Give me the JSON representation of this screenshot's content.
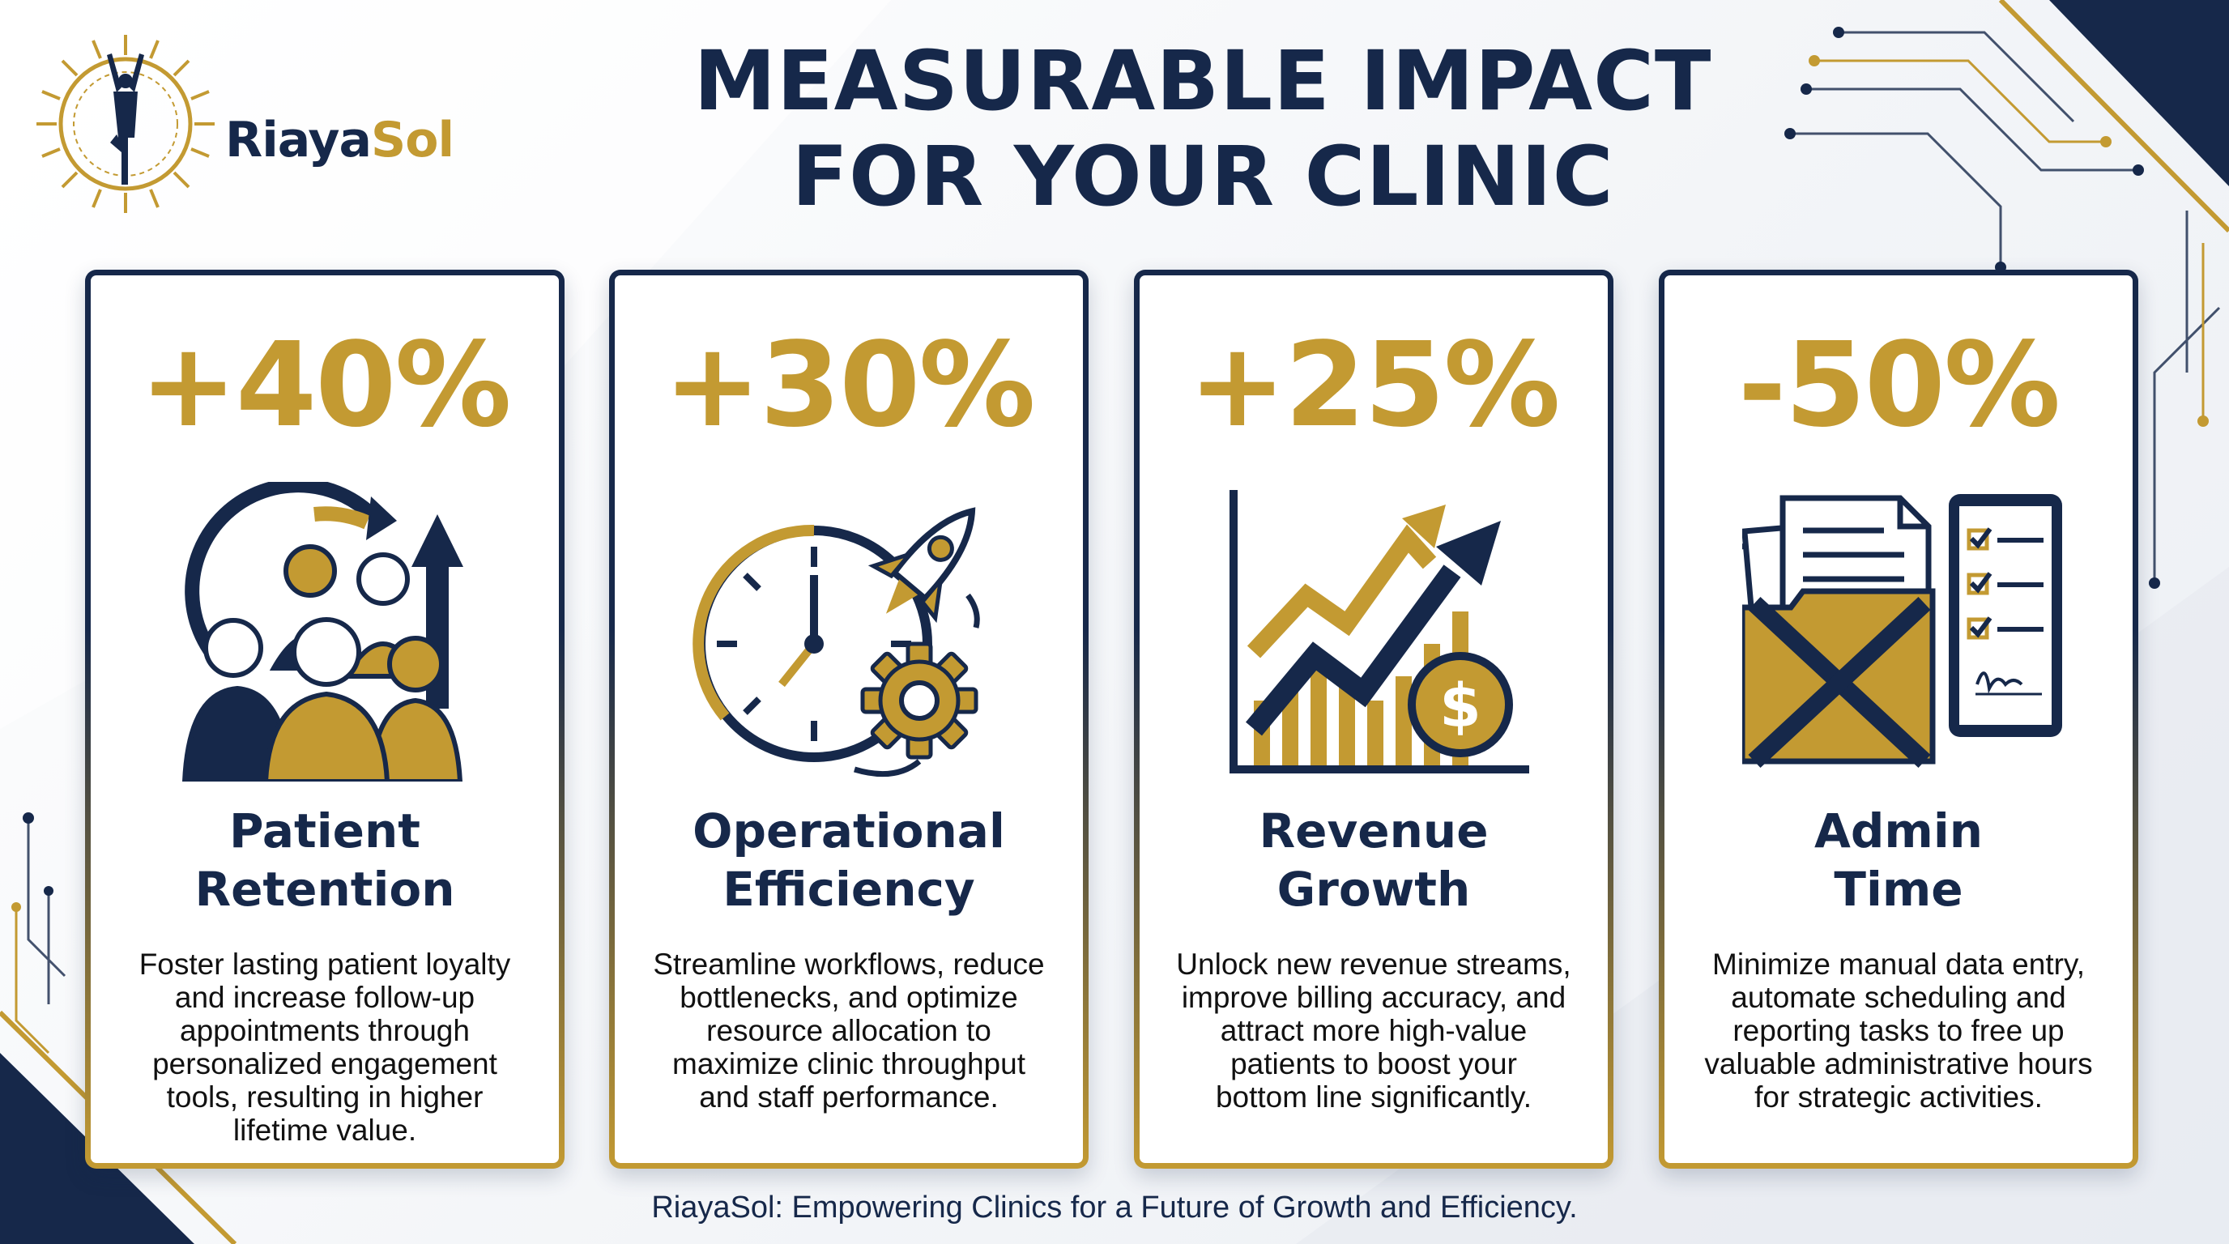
{
  "brand": {
    "name_part1": "Riaya",
    "name_part2": "Sol"
  },
  "title": {
    "line1": "MEASURABLE IMPACT",
    "line2": "FOR YOUR CLINIC"
  },
  "colors": {
    "navy": "#16284a",
    "gold": "#c39a32"
  },
  "cards": [
    {
      "stat": "+40%",
      "icon": "patient-group-retention-icon",
      "title_line1": "Patient",
      "title_line2": "Retention",
      "desc_lines": [
        "Foster lasting patient loyalty",
        "and increase follow-up",
        "appointments through",
        "personalized engagement",
        "tools, resulting in higher",
        "lifetime value."
      ]
    },
    {
      "stat": "+30%",
      "icon": "clock-rocket-gear-icon",
      "title_line1": "Operational",
      "title_line2": "Efficiency",
      "desc_lines": [
        "Streamline workflows, reduce",
        "bottlenecks, and optimize",
        "resource allocation to",
        "maximize clinic throughput",
        "and staff performance."
      ]
    },
    {
      "stat": "+25%",
      "icon": "revenue-growth-chart-icon",
      "title_line1": "Revenue",
      "title_line2": "Growth",
      "desc_lines": [
        "Unlock new revenue streams,",
        "improve billing accuracy, and",
        "attract more high-value",
        "patients to boost your",
        "bottom line significantly."
      ]
    },
    {
      "stat": "-50%",
      "icon": "paperwork-tablet-checklist-icon",
      "title_line1": "Admin",
      "title_line2": "Time",
      "desc_lines": [
        "Minimize manual data entry,",
        "automate scheduling and",
        "reporting tasks to free up",
        "valuable administrative hours",
        "for strategic activities."
      ]
    }
  ],
  "footer": "RiayaSol: Empowering Clinics for a Future of Growth and Efficiency."
}
